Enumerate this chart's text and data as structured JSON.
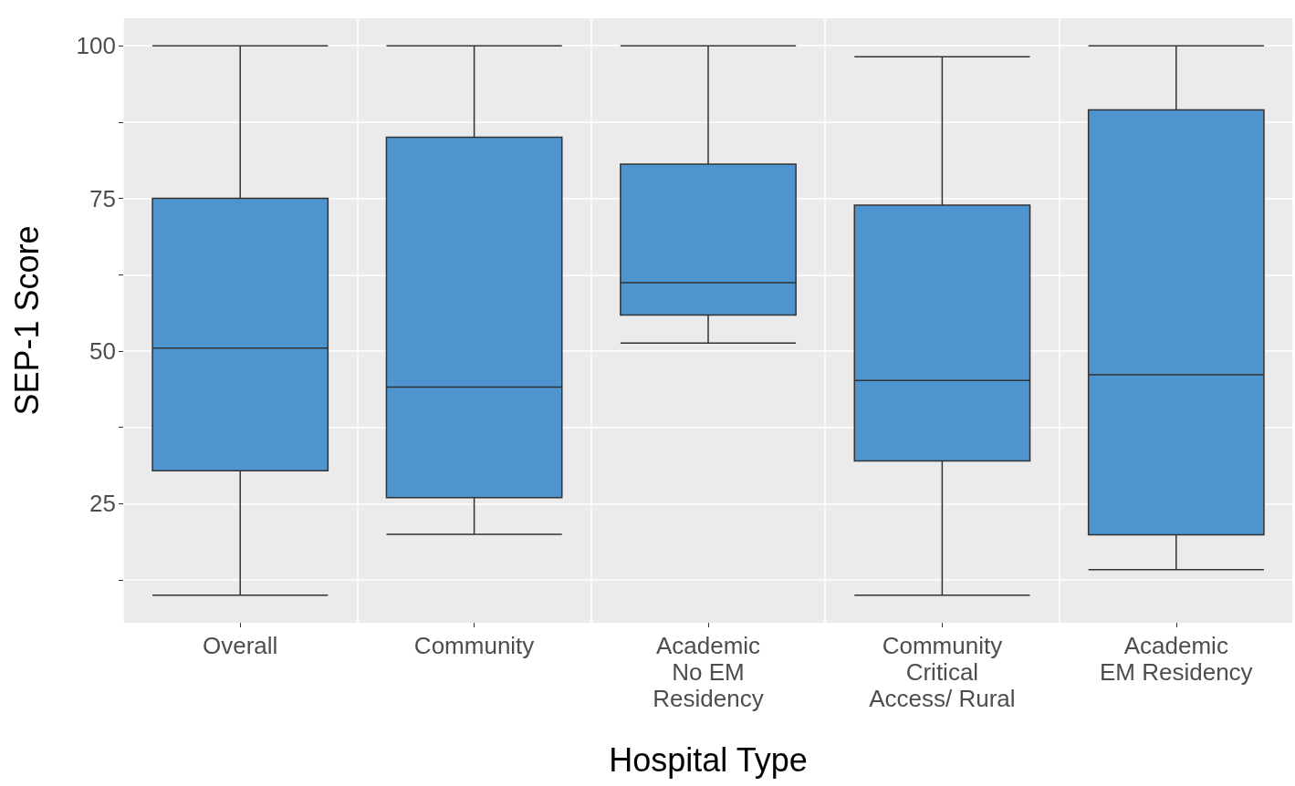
{
  "chart_data": {
    "type": "box",
    "xlabel": "Hospital Type",
    "ylabel": "SEP-1 Score",
    "categories": [
      "Overall",
      "Community",
      "Academic\nNo EM\nResidency",
      "Community\nCritical\nAccess/ Rural",
      "Academic\nEM Residency"
    ],
    "boxes": [
      {
        "low": 10,
        "q1": 30.4,
        "median": 50.5,
        "q3": 75,
        "high": 100
      },
      {
        "low": 20,
        "q1": 26,
        "median": 44.1,
        "q3": 85,
        "high": 100
      },
      {
        "low": 51.3,
        "q1": 55.9,
        "median": 61.2,
        "q3": 80.6,
        "high": 100
      },
      {
        "low": 10,
        "q1": 32,
        "median": 45.2,
        "q3": 73.9,
        "high": 98.2
      },
      {
        "low": 14.2,
        "q1": 19.9,
        "median": 46.1,
        "q3": 89.5,
        "high": 100
      }
    ],
    "color": "#4e94ce",
    "ylim": [
      5.5,
      104.5
    ],
    "yticks": [
      {
        "value": 12.5,
        "label": null
      },
      25,
      {
        "value": 37.5,
        "label": null
      },
      50,
      {
        "value": 62.5,
        "label": null
      },
      75,
      {
        "value": 87.5,
        "label": null
      },
      100
    ],
    "grid": true
  }
}
